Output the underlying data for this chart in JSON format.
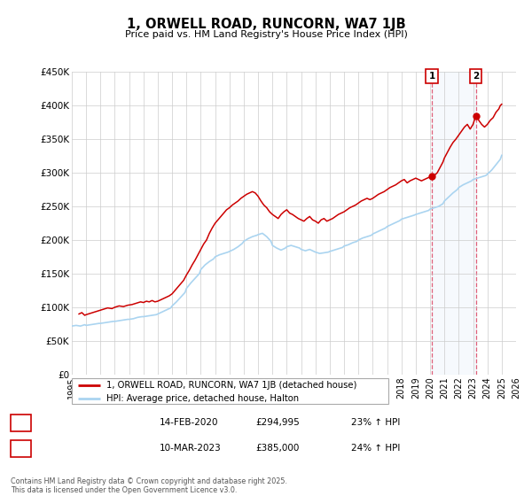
{
  "title": "1, ORWELL ROAD, RUNCORN, WA7 1JB",
  "subtitle": "Price paid vs. HM Land Registry's House Price Index (HPI)",
  "bg_color": "#ffffff",
  "plot_bg_color": "#ffffff",
  "grid_color": "#cccccc",
  "red_line_color": "#cc0000",
  "blue_line_color": "#aad4f0",
  "marker1_date_num": 2020.12,
  "marker2_date_num": 2023.19,
  "marker1_value": 294995,
  "marker2_value": 385000,
  "ylim": [
    0,
    450000
  ],
  "xlim_left": 1995,
  "xlim_right": 2026,
  "yticks": [
    0,
    50000,
    100000,
    150000,
    200000,
    250000,
    300000,
    350000,
    400000,
    450000
  ],
  "ytick_labels": [
    "£0",
    "£50K",
    "£100K",
    "£150K",
    "£200K",
    "£250K",
    "£300K",
    "£350K",
    "£400K",
    "£450K"
  ],
  "xticks": [
    1995,
    1996,
    1997,
    1998,
    1999,
    2000,
    2001,
    2002,
    2003,
    2004,
    2005,
    2006,
    2007,
    2008,
    2009,
    2010,
    2011,
    2012,
    2013,
    2014,
    2015,
    2016,
    2017,
    2018,
    2019,
    2020,
    2021,
    2022,
    2023,
    2024,
    2025,
    2026
  ],
  "legend_label_red": "1, ORWELL ROAD, RUNCORN, WA7 1JB (detached house)",
  "legend_label_blue": "HPI: Average price, detached house, Halton",
  "footer_text": "Contains HM Land Registry data © Crown copyright and database right 2025.\nThis data is licensed under the Open Government Licence v3.0.",
  "table_rows": [
    {
      "num": "1",
      "date": "14-FEB-2020",
      "price": "£294,995",
      "pct": "23% ↑ HPI"
    },
    {
      "num": "2",
      "date": "10-MAR-2023",
      "price": "£385,000",
      "pct": "24% ↑ HPI"
    }
  ],
  "red_data": [
    [
      1995.5,
      90000
    ],
    [
      1995.7,
      92000
    ],
    [
      1995.9,
      88000
    ],
    [
      1996.0,
      89000
    ],
    [
      1996.3,
      91000
    ],
    [
      1996.6,
      93000
    ],
    [
      1996.9,
      95000
    ],
    [
      1997.2,
      97000
    ],
    [
      1997.5,
      99000
    ],
    [
      1997.8,
      98000
    ],
    [
      1998.0,
      100000
    ],
    [
      1998.3,
      102000
    ],
    [
      1998.6,
      101000
    ],
    [
      1998.9,
      103000
    ],
    [
      1999.2,
      104000
    ],
    [
      1999.5,
      106000
    ],
    [
      1999.8,
      108000
    ],
    [
      2000.0,
      107000
    ],
    [
      2000.2,
      109000
    ],
    [
      2000.4,
      108000
    ],
    [
      2000.6,
      110000
    ],
    [
      2000.8,
      108000
    ],
    [
      2001.0,
      109000
    ],
    [
      2001.2,
      111000
    ],
    [
      2001.4,
      113000
    ],
    [
      2001.6,
      115000
    ],
    [
      2001.8,
      117000
    ],
    [
      2002.0,
      120000
    ],
    [
      2002.2,
      125000
    ],
    [
      2002.4,
      130000
    ],
    [
      2002.6,
      135000
    ],
    [
      2002.8,
      140000
    ],
    [
      2003.0,
      148000
    ],
    [
      2003.2,
      155000
    ],
    [
      2003.4,
      163000
    ],
    [
      2003.6,
      170000
    ],
    [
      2003.8,
      178000
    ],
    [
      2004.0,
      186000
    ],
    [
      2004.2,
      194000
    ],
    [
      2004.4,
      200000
    ],
    [
      2004.6,
      210000
    ],
    [
      2004.8,
      218000
    ],
    [
      2005.0,
      225000
    ],
    [
      2005.2,
      230000
    ],
    [
      2005.4,
      235000
    ],
    [
      2005.6,
      240000
    ],
    [
      2005.8,
      245000
    ],
    [
      2006.0,
      248000
    ],
    [
      2006.2,
      252000
    ],
    [
      2006.4,
      255000
    ],
    [
      2006.6,
      258000
    ],
    [
      2006.8,
      262000
    ],
    [
      2007.0,
      265000
    ],
    [
      2007.2,
      268000
    ],
    [
      2007.4,
      270000
    ],
    [
      2007.6,
      272000
    ],
    [
      2007.8,
      270000
    ],
    [
      2008.0,
      265000
    ],
    [
      2008.2,
      258000
    ],
    [
      2008.4,
      252000
    ],
    [
      2008.6,
      248000
    ],
    [
      2008.8,
      242000
    ],
    [
      2009.0,
      238000
    ],
    [
      2009.2,
      235000
    ],
    [
      2009.4,
      232000
    ],
    [
      2009.6,
      238000
    ],
    [
      2009.8,
      242000
    ],
    [
      2010.0,
      245000
    ],
    [
      2010.2,
      240000
    ],
    [
      2010.4,
      238000
    ],
    [
      2010.6,
      235000
    ],
    [
      2010.8,
      232000
    ],
    [
      2011.0,
      230000
    ],
    [
      2011.2,
      228000
    ],
    [
      2011.4,
      232000
    ],
    [
      2011.6,
      235000
    ],
    [
      2011.8,
      230000
    ],
    [
      2012.0,
      228000
    ],
    [
      2012.2,
      225000
    ],
    [
      2012.4,
      230000
    ],
    [
      2012.6,
      232000
    ],
    [
      2012.8,
      228000
    ],
    [
      2013.0,
      230000
    ],
    [
      2013.2,
      232000
    ],
    [
      2013.4,
      235000
    ],
    [
      2013.6,
      238000
    ],
    [
      2013.8,
      240000
    ],
    [
      2014.0,
      242000
    ],
    [
      2014.2,
      245000
    ],
    [
      2014.4,
      248000
    ],
    [
      2014.6,
      250000
    ],
    [
      2014.8,
      252000
    ],
    [
      2015.0,
      255000
    ],
    [
      2015.2,
      258000
    ],
    [
      2015.4,
      260000
    ],
    [
      2015.6,
      262000
    ],
    [
      2015.8,
      260000
    ],
    [
      2016.0,
      262000
    ],
    [
      2016.2,
      265000
    ],
    [
      2016.4,
      268000
    ],
    [
      2016.6,
      270000
    ],
    [
      2016.8,
      272000
    ],
    [
      2017.0,
      275000
    ],
    [
      2017.2,
      278000
    ],
    [
      2017.4,
      280000
    ],
    [
      2017.6,
      282000
    ],
    [
      2017.8,
      285000
    ],
    [
      2018.0,
      288000
    ],
    [
      2018.2,
      290000
    ],
    [
      2018.4,
      285000
    ],
    [
      2018.6,
      288000
    ],
    [
      2018.8,
      290000
    ],
    [
      2019.0,
      292000
    ],
    [
      2019.2,
      290000
    ],
    [
      2019.4,
      288000
    ],
    [
      2019.6,
      290000
    ],
    [
      2019.8,
      292000
    ],
    [
      2020.12,
      294995
    ],
    [
      2020.3,
      296000
    ],
    [
      2020.5,
      300000
    ],
    [
      2020.7,
      308000
    ],
    [
      2020.9,
      316000
    ],
    [
      2021.0,
      322000
    ],
    [
      2021.2,
      330000
    ],
    [
      2021.4,
      338000
    ],
    [
      2021.6,
      345000
    ],
    [
      2021.8,
      350000
    ],
    [
      2022.0,
      356000
    ],
    [
      2022.2,
      362000
    ],
    [
      2022.4,
      368000
    ],
    [
      2022.6,
      372000
    ],
    [
      2022.8,
      365000
    ],
    [
      2023.0,
      372000
    ],
    [
      2023.19,
      385000
    ],
    [
      2023.4,
      378000
    ],
    [
      2023.6,
      372000
    ],
    [
      2023.8,
      368000
    ],
    [
      2024.0,
      372000
    ],
    [
      2024.2,
      378000
    ],
    [
      2024.4,
      382000
    ],
    [
      2024.6,
      390000
    ],
    [
      2024.8,
      395000
    ],
    [
      2024.9,
      400000
    ],
    [
      2025.0,
      402000
    ]
  ],
  "blue_data": [
    [
      1995.0,
      72000
    ],
    [
      1995.3,
      73000
    ],
    [
      1995.6,
      72000
    ],
    [
      1995.9,
      74000
    ],
    [
      1996.0,
      73000
    ],
    [
      1996.3,
      74000
    ],
    [
      1996.6,
      75000
    ],
    [
      1996.9,
      76000
    ],
    [
      1997.0,
      76000
    ],
    [
      1997.3,
      77000
    ],
    [
      1997.6,
      78000
    ],
    [
      1997.9,
      79000
    ],
    [
      1998.0,
      79000
    ],
    [
      1998.3,
      80000
    ],
    [
      1998.6,
      81000
    ],
    [
      1998.9,
      82000
    ],
    [
      1999.0,
      82000
    ],
    [
      1999.3,
      83000
    ],
    [
      1999.6,
      85000
    ],
    [
      1999.9,
      86000
    ],
    [
      2000.0,
      86000
    ],
    [
      2000.3,
      87000
    ],
    [
      2000.6,
      88000
    ],
    [
      2000.9,
      89000
    ],
    [
      2001.0,
      90000
    ],
    [
      2001.3,
      93000
    ],
    [
      2001.6,
      96000
    ],
    [
      2001.9,
      99000
    ],
    [
      2002.0,
      102000
    ],
    [
      2002.3,
      108000
    ],
    [
      2002.6,
      115000
    ],
    [
      2002.9,
      122000
    ],
    [
      2003.0,
      128000
    ],
    [
      2003.3,
      136000
    ],
    [
      2003.6,
      143000
    ],
    [
      2003.9,
      150000
    ],
    [
      2004.0,
      156000
    ],
    [
      2004.3,
      163000
    ],
    [
      2004.6,
      168000
    ],
    [
      2004.9,
      172000
    ],
    [
      2005.0,
      175000
    ],
    [
      2005.3,
      178000
    ],
    [
      2005.6,
      180000
    ],
    [
      2005.9,
      182000
    ],
    [
      2006.0,
      183000
    ],
    [
      2006.3,
      186000
    ],
    [
      2006.6,
      190000
    ],
    [
      2006.9,
      195000
    ],
    [
      2007.0,
      198000
    ],
    [
      2007.3,
      202000
    ],
    [
      2007.6,
      205000
    ],
    [
      2007.9,
      207000
    ],
    [
      2008.0,
      208000
    ],
    [
      2008.3,
      210000
    ],
    [
      2008.6,
      205000
    ],
    [
      2008.9,
      198000
    ],
    [
      2009.0,
      192000
    ],
    [
      2009.3,
      188000
    ],
    [
      2009.6,
      185000
    ],
    [
      2009.9,
      188000
    ],
    [
      2010.0,
      190000
    ],
    [
      2010.3,
      192000
    ],
    [
      2010.6,
      190000
    ],
    [
      2010.9,
      188000
    ],
    [
      2011.0,
      186000
    ],
    [
      2011.3,
      184000
    ],
    [
      2011.6,
      186000
    ],
    [
      2011.9,
      183000
    ],
    [
      2012.0,
      182000
    ],
    [
      2012.3,
      180000
    ],
    [
      2012.6,
      181000
    ],
    [
      2012.9,
      182000
    ],
    [
      2013.0,
      183000
    ],
    [
      2013.3,
      185000
    ],
    [
      2013.6,
      187000
    ],
    [
      2013.9,
      189000
    ],
    [
      2014.0,
      191000
    ],
    [
      2014.3,
      193000
    ],
    [
      2014.6,
      196000
    ],
    [
      2014.9,
      198000
    ],
    [
      2015.0,
      200000
    ],
    [
      2015.3,
      203000
    ],
    [
      2015.6,
      205000
    ],
    [
      2015.9,
      207000
    ],
    [
      2016.0,
      209000
    ],
    [
      2016.3,
      212000
    ],
    [
      2016.6,
      215000
    ],
    [
      2016.9,
      218000
    ],
    [
      2017.0,
      220000
    ],
    [
      2017.3,
      223000
    ],
    [
      2017.6,
      226000
    ],
    [
      2017.9,
      229000
    ],
    [
      2018.0,
      231000
    ],
    [
      2018.3,
      233000
    ],
    [
      2018.6,
      235000
    ],
    [
      2018.9,
      237000
    ],
    [
      2019.0,
      238000
    ],
    [
      2019.3,
      240000
    ],
    [
      2019.6,
      242000
    ],
    [
      2019.9,
      244000
    ],
    [
      2020.0,
      246000
    ],
    [
      2020.3,
      248000
    ],
    [
      2020.6,
      250000
    ],
    [
      2020.9,
      254000
    ],
    [
      2021.0,
      258000
    ],
    [
      2021.3,
      264000
    ],
    [
      2021.6,
      270000
    ],
    [
      2021.9,
      275000
    ],
    [
      2022.0,
      278000
    ],
    [
      2022.3,
      282000
    ],
    [
      2022.6,
      285000
    ],
    [
      2022.9,
      288000
    ],
    [
      2023.0,
      290000
    ],
    [
      2023.3,
      292000
    ],
    [
      2023.6,
      294000
    ],
    [
      2023.9,
      296000
    ],
    [
      2024.0,
      298000
    ],
    [
      2024.3,
      304000
    ],
    [
      2024.6,
      312000
    ],
    [
      2024.9,
      320000
    ],
    [
      2025.0,
      326000
    ]
  ]
}
